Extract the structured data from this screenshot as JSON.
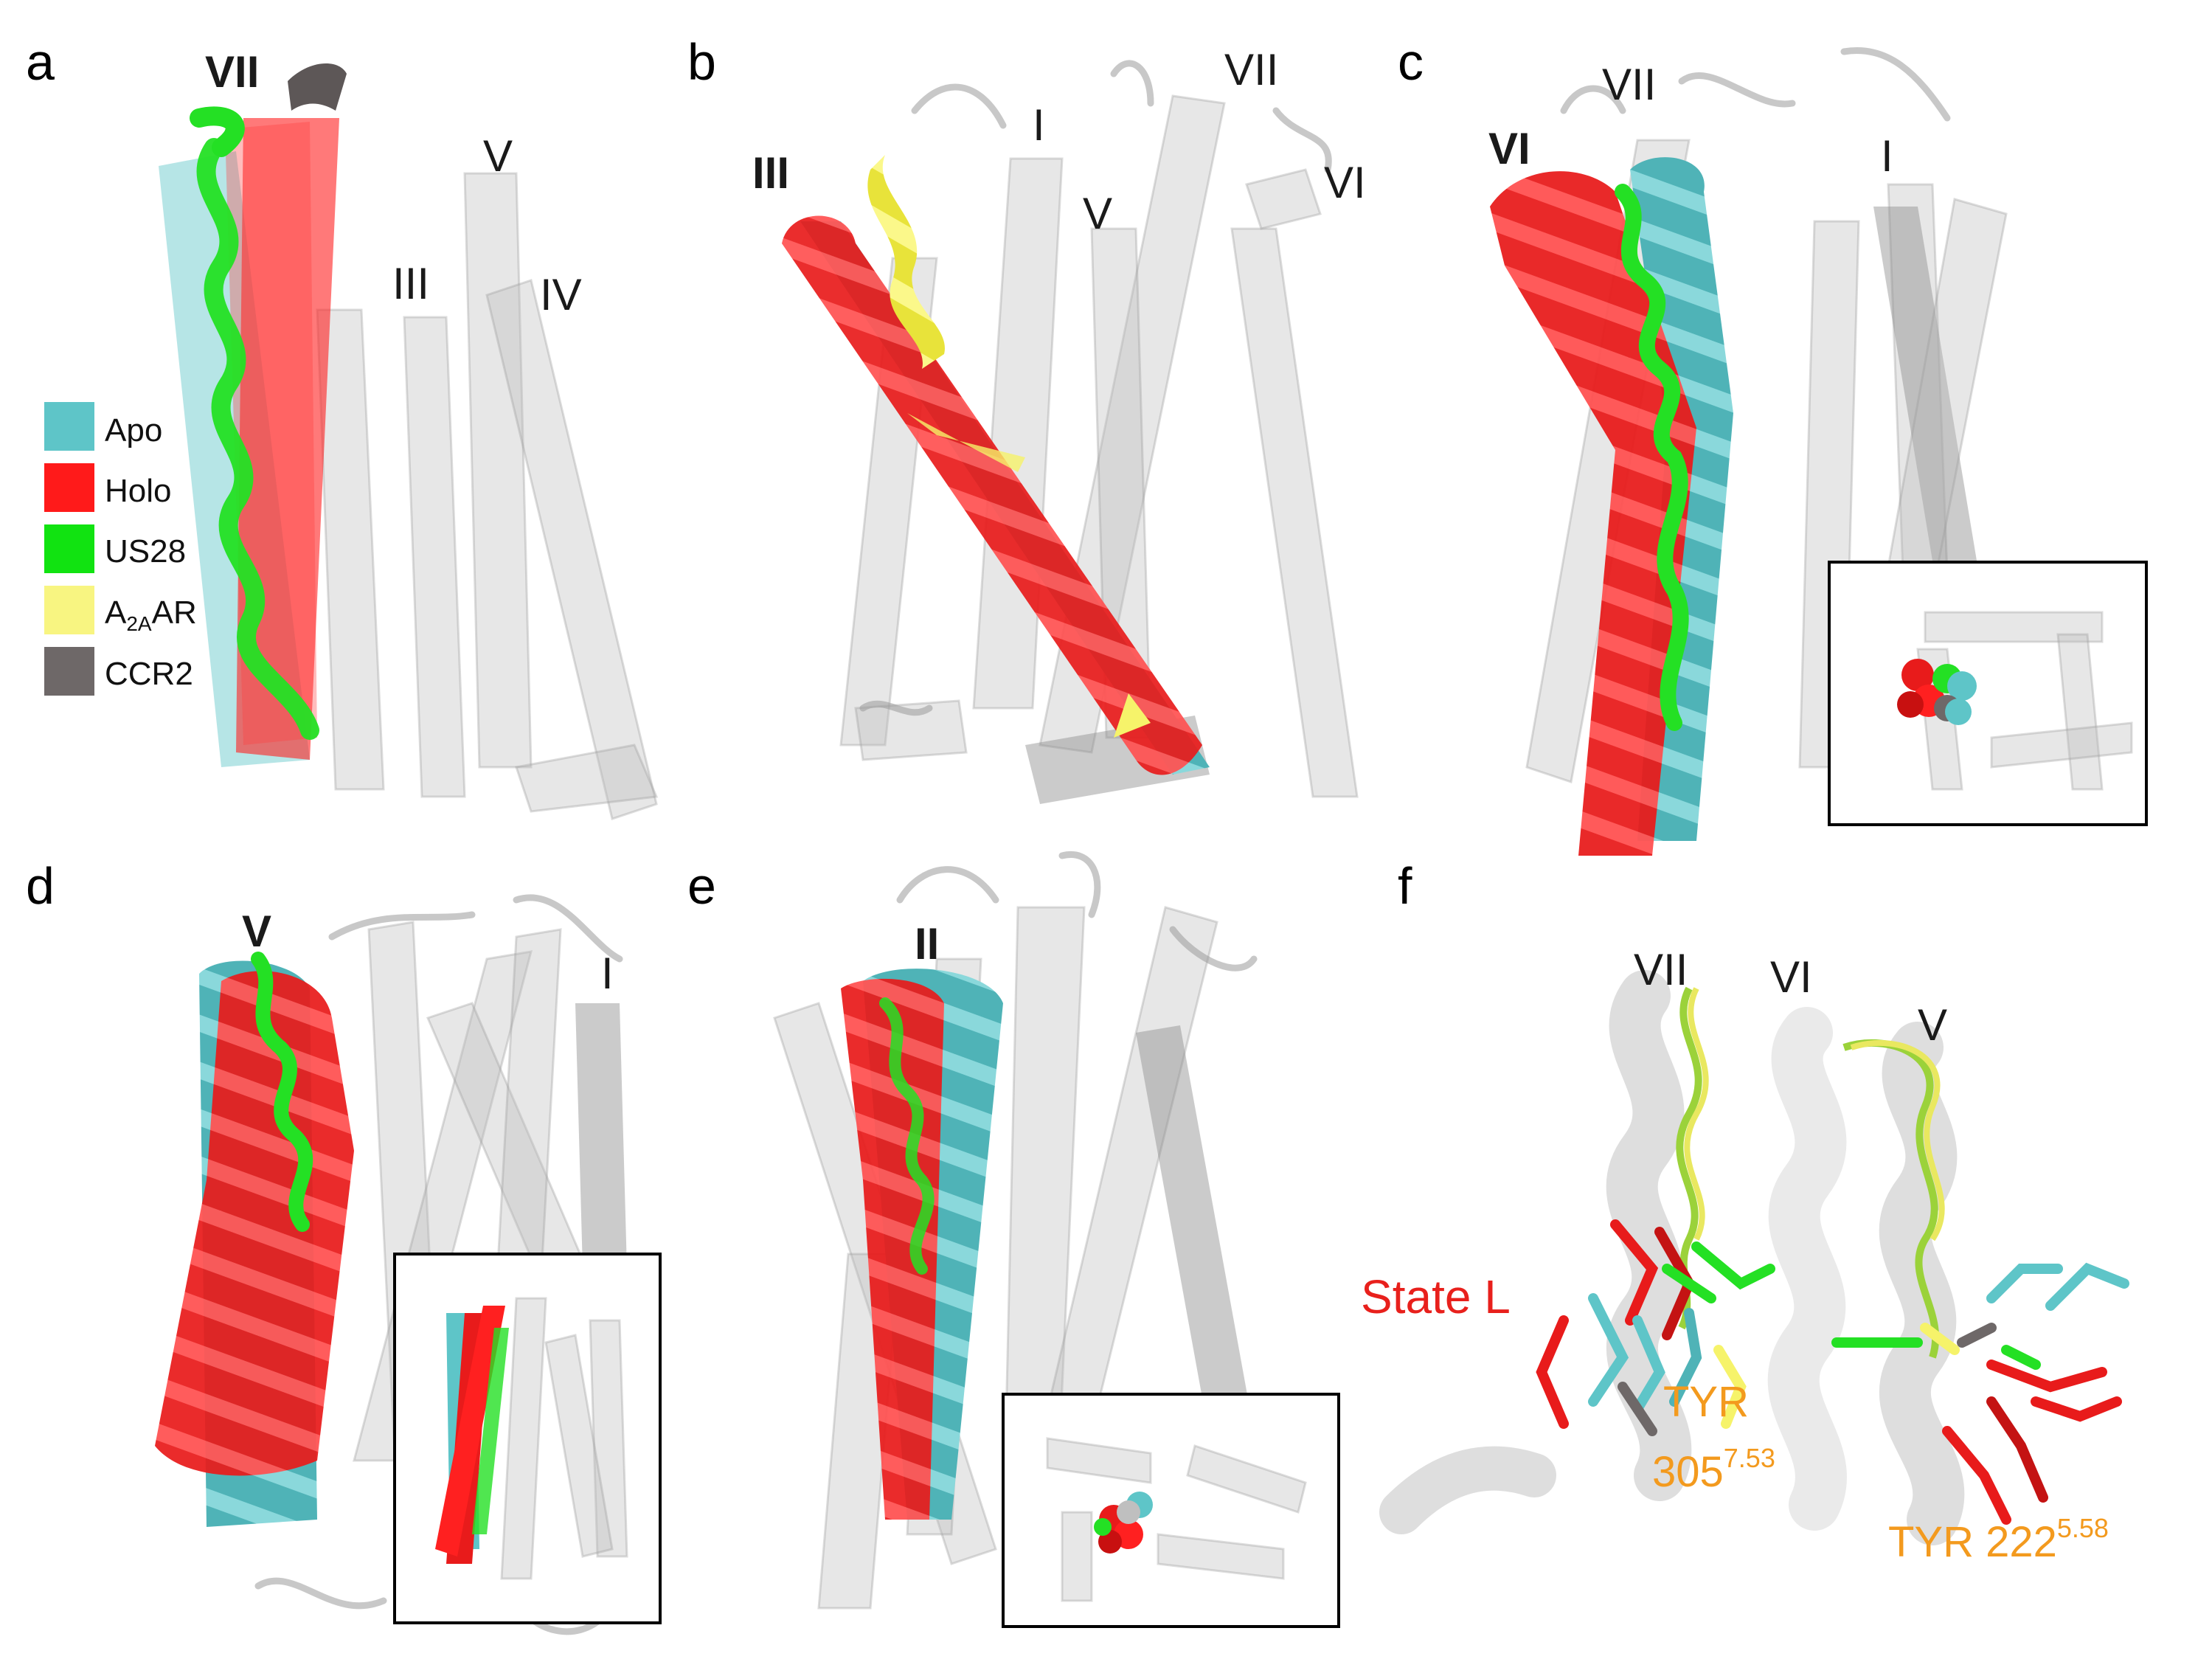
{
  "legend": {
    "items": [
      {
        "label": "Apo",
        "color": "#5ec5c8"
      },
      {
        "label": "Holo",
        "color": "#ff2020"
      },
      {
        "label": "US28",
        "color": "#24e024"
      },
      {
        "label": "A",
        "sub": "2A",
        "suffix": "AR",
        "color": "#f6f36a"
      },
      {
        "label": "CCR2",
        "color": "#6e6868"
      }
    ]
  },
  "panels": {
    "a": {
      "letter": "a",
      "main_helix": "VII",
      "labels": [
        "V",
        "III",
        "IV"
      ]
    },
    "b": {
      "letter": "b",
      "main_helix": "III",
      "labels": [
        "I",
        "VII",
        "VI",
        "V"
      ]
    },
    "c": {
      "letter": "c",
      "main_helix": "VI",
      "labels": [
        "VII",
        "I"
      ]
    },
    "d": {
      "letter": "d",
      "main_helix": "V",
      "labels": [
        "I"
      ]
    },
    "e": {
      "letter": "e",
      "main_helix": "II",
      "labels": []
    },
    "f": {
      "letter": "f",
      "labels": [
        "VII",
        "VI",
        "V"
      ],
      "state_label": "State L",
      "tyr305_name": "TYR",
      "tyr305_num": "305",
      "tyr305_sup": "7.53",
      "tyr222_name": "TYR 222",
      "tyr222_sup": "5.58"
    }
  },
  "colors": {
    "apo": "#5ec5c8",
    "holo": "#ff2020",
    "us28": "#24e024",
    "a2aar": "#f6f36a",
    "ccr2": "#6e6868",
    "annotation_orange": "#f39a1e",
    "annotation_red": "#e8201c"
  }
}
